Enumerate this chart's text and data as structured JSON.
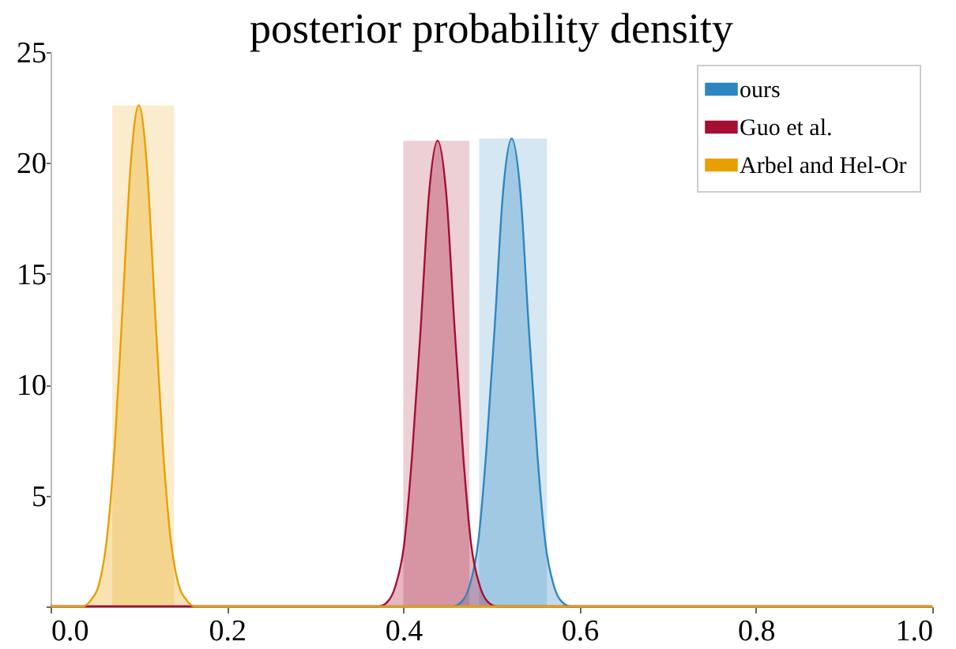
{
  "chart_data": {
    "type": "area",
    "title": "posterior probability density",
    "series": [
      {
        "name": "ours",
        "color": "#2e86c1",
        "x": [
          0,
          0.456,
          0.466,
          0.475,
          0.485,
          0.494,
          0.504,
          0.513,
          0.523,
          0.533,
          0.542,
          0.552,
          0.561,
          0.571,
          0.58,
          0.59,
          1
        ],
        "values": [
          0,
          0.0,
          0.2,
          0.9,
          2.9,
          6.9,
          12.8,
          18.6,
          21.1,
          18.6,
          12.8,
          6.9,
          2.9,
          0.9,
          0.2,
          0.0,
          0
        ]
      },
      {
        "name": "Guo et al.",
        "color": "#a50f33",
        "x": [
          0,
          0.372,
          0.382,
          0.391,
          0.401,
          0.41,
          0.42,
          0.429,
          0.439,
          0.449,
          0.458,
          0.468,
          0.477,
          0.487,
          0.496,
          0.506,
          1
        ],
        "values": [
          0,
          0.0,
          0.2,
          0.9,
          2.8,
          6.8,
          12.7,
          18.5,
          21.0,
          18.5,
          12.7,
          6.8,
          2.8,
          0.9,
          0.2,
          0.0,
          0
        ]
      },
      {
        "name": "Arbel and Hel-Or",
        "color": "#e89f00",
        "x": [
          0,
          0.037,
          0.046,
          0.055,
          0.064,
          0.073,
          0.082,
          0.091,
          0.1,
          0.109,
          0.118,
          0.127,
          0.136,
          0.145,
          0.154,
          0.163,
          1
        ],
        "values": [
          0,
          0.0,
          0.3,
          1.0,
          3.1,
          7.4,
          13.7,
          20.0,
          22.6,
          20.0,
          13.7,
          7.4,
          3.1,
          1.0,
          0.3,
          0.0,
          0
        ]
      }
    ],
    "bands": [
      {
        "axis": "x",
        "from": 0.486,
        "to": 0.563,
        "color": "#2e86c1"
      },
      {
        "axis": "x",
        "from": 0.4,
        "to": 0.475,
        "color": "#a50f33"
      },
      {
        "axis": "x",
        "from": 0.07,
        "to": 0.14,
        "color": "#e89f00"
      }
    ],
    "xlim": [
      0,
      1
    ],
    "xticks": [
      {
        "value": 0,
        "label": "0.0"
      },
      0.2,
      0.4,
      0.6,
      0.8,
      {
        "value": 1,
        "label": "1.0"
      }
    ],
    "ylim": [
      0,
      25
    ],
    "yticks": [
      {
        "value": 0,
        "label": null
      },
      5,
      10,
      15,
      20,
      25
    ],
    "legend": "top right",
    "grid": false
  }
}
